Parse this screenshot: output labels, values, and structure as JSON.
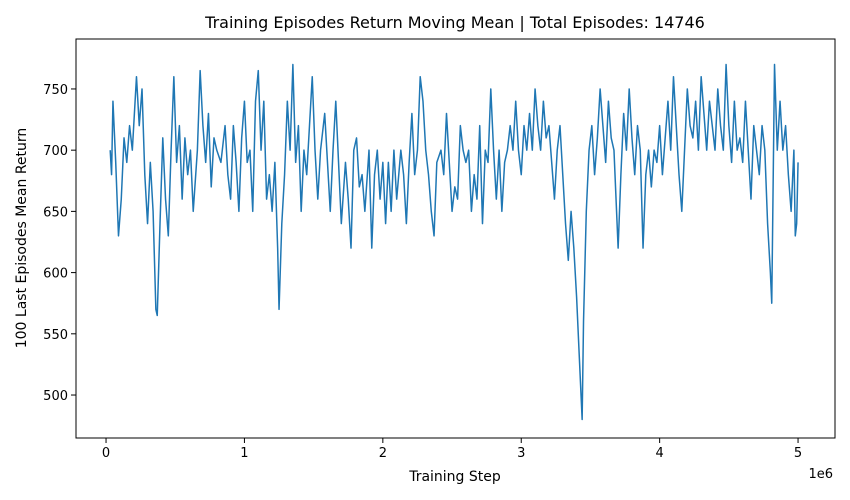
{
  "chart_data": {
    "type": "line",
    "title": "Training Episodes Return Moving Mean | Total Episodes: 14746",
    "x_label": "Training Step",
    "y_label": "100 Last Episodes Mean Return",
    "x_offset_label": "1e6",
    "color": "#1f77b4",
    "grid": false,
    "xlim": [
      -0.217,
      5.267
    ],
    "xticks": [
      0,
      1,
      2,
      3,
      4,
      5
    ],
    "ylim": [
      464.9,
      790.8
    ],
    "yticks": [
      500,
      550,
      600,
      650,
      700,
      750
    ],
    "x": [
      0.03,
      0.04,
      0.05,
      0.07,
      0.09,
      0.11,
      0.13,
      0.15,
      0.17,
      0.19,
      0.22,
      0.24,
      0.26,
      0.28,
      0.3,
      0.32,
      0.34,
      0.36,
      0.37,
      0.39,
      0.41,
      0.43,
      0.45,
      0.47,
      0.49,
      0.51,
      0.53,
      0.55,
      0.57,
      0.59,
      0.61,
      0.63,
      0.66,
      0.68,
      0.7,
      0.72,
      0.74,
      0.76,
      0.78,
      0.8,
      0.83,
      0.86,
      0.88,
      0.9,
      0.92,
      0.94,
      0.96,
      0.98,
      1.0,
      1.02,
      1.04,
      1.06,
      1.08,
      1.1,
      1.12,
      1.14,
      1.16,
      1.18,
      1.2,
      1.22,
      1.24,
      1.25,
      1.27,
      1.29,
      1.31,
      1.33,
      1.35,
      1.37,
      1.39,
      1.41,
      1.43,
      1.45,
      1.47,
      1.49,
      1.51,
      1.53,
      1.55,
      1.58,
      1.6,
      1.62,
      1.64,
      1.66,
      1.68,
      1.7,
      1.73,
      1.75,
      1.77,
      1.79,
      1.81,
      1.83,
      1.85,
      1.87,
      1.9,
      1.92,
      1.94,
      1.96,
      1.98,
      2.0,
      2.02,
      2.04,
      2.06,
      2.08,
      2.1,
      2.13,
      2.15,
      2.17,
      2.19,
      2.21,
      2.23,
      2.25,
      2.27,
      2.29,
      2.31,
      2.33,
      2.35,
      2.37,
      2.39,
      2.42,
      2.44,
      2.46,
      2.48,
      2.5,
      2.52,
      2.54,
      2.56,
      2.58,
      2.6,
      2.62,
      2.64,
      2.66,
      2.68,
      2.7,
      2.72,
      2.74,
      2.76,
      2.78,
      2.8,
      2.82,
      2.84,
      2.86,
      2.88,
      2.9,
      2.92,
      2.94,
      2.96,
      2.98,
      3.0,
      3.02,
      3.04,
      3.06,
      3.08,
      3.1,
      3.12,
      3.14,
      3.16,
      3.18,
      3.2,
      3.22,
      3.24,
      3.26,
      3.28,
      3.3,
      3.32,
      3.34,
      3.36,
      3.38,
      3.4,
      3.42,
      3.44,
      3.45,
      3.47,
      3.49,
      3.51,
      3.53,
      3.55,
      3.57,
      3.59,
      3.61,
      3.63,
      3.65,
      3.67,
      3.7,
      3.72,
      3.74,
      3.76,
      3.78,
      3.8,
      3.82,
      3.84,
      3.86,
      3.88,
      3.9,
      3.92,
      3.94,
      3.96,
      3.98,
      4.0,
      4.02,
      4.04,
      4.06,
      4.08,
      4.1,
      4.12,
      4.14,
      4.16,
      4.18,
      4.2,
      4.22,
      4.24,
      4.26,
      4.28,
      4.3,
      4.32,
      4.34,
      4.36,
      4.38,
      4.4,
      4.42,
      4.44,
      4.46,
      4.48,
      4.5,
      4.52,
      4.54,
      4.56,
      4.58,
      4.6,
      4.62,
      4.64,
      4.66,
      4.68,
      4.7,
      4.72,
      4.74,
      4.76,
      4.78,
      4.8,
      4.81,
      4.83,
      4.85,
      4.87,
      4.89,
      4.91,
      4.93,
      4.95,
      4.97,
      4.98,
      4.99,
      5.0
    ],
    "values": [
      700,
      680,
      740,
      690,
      630,
      660,
      710,
      690,
      720,
      700,
      760,
      720,
      750,
      680,
      640,
      690,
      650,
      570,
      565,
      640,
      710,
      660,
      630,
      700,
      760,
      690,
      720,
      660,
      710,
      680,
      700,
      650,
      700,
      765,
      720,
      690,
      730,
      670,
      710,
      700,
      690,
      720,
      680,
      660,
      720,
      690,
      650,
      710,
      740,
      690,
      700,
      650,
      740,
      765,
      700,
      740,
      660,
      680,
      650,
      690,
      620,
      570,
      640,
      680,
      740,
      700,
      770,
      690,
      720,
      650,
      700,
      680,
      720,
      760,
      700,
      660,
      700,
      730,
      690,
      650,
      700,
      740,
      690,
      640,
      690,
      660,
      620,
      700,
      710,
      670,
      680,
      650,
      700,
      620,
      680,
      700,
      660,
      690,
      640,
      690,
      650,
      700,
      660,
      700,
      680,
      640,
      690,
      730,
      680,
      700,
      760,
      740,
      700,
      680,
      650,
      630,
      690,
      700,
      680,
      730,
      690,
      650,
      670,
      660,
      720,
      700,
      690,
      700,
      650,
      680,
      660,
      720,
      640,
      700,
      690,
      750,
      700,
      660,
      700,
      650,
      690,
      700,
      720,
      700,
      740,
      700,
      680,
      720,
      700,
      730,
      700,
      750,
      720,
      700,
      740,
      710,
      720,
      690,
      660,
      700,
      720,
      680,
      640,
      610,
      650,
      620,
      580,
      530,
      480,
      560,
      650,
      700,
      720,
      680,
      710,
      750,
      720,
      690,
      740,
      710,
      700,
      620,
      680,
      730,
      700,
      750,
      710,
      680,
      720,
      700,
      620,
      680,
      700,
      670,
      700,
      690,
      720,
      680,
      710,
      740,
      700,
      760,
      720,
      680,
      650,
      700,
      750,
      720,
      710,
      740,
      700,
      760,
      730,
      700,
      740,
      720,
      700,
      750,
      720,
      700,
      770,
      720,
      690,
      740,
      700,
      710,
      690,
      740,
      700,
      660,
      720,
      700,
      680,
      720,
      700,
      640,
      600,
      575,
      770,
      700,
      740,
      700,
      720,
      680,
      650,
      700,
      630,
      640,
      690
    ]
  }
}
